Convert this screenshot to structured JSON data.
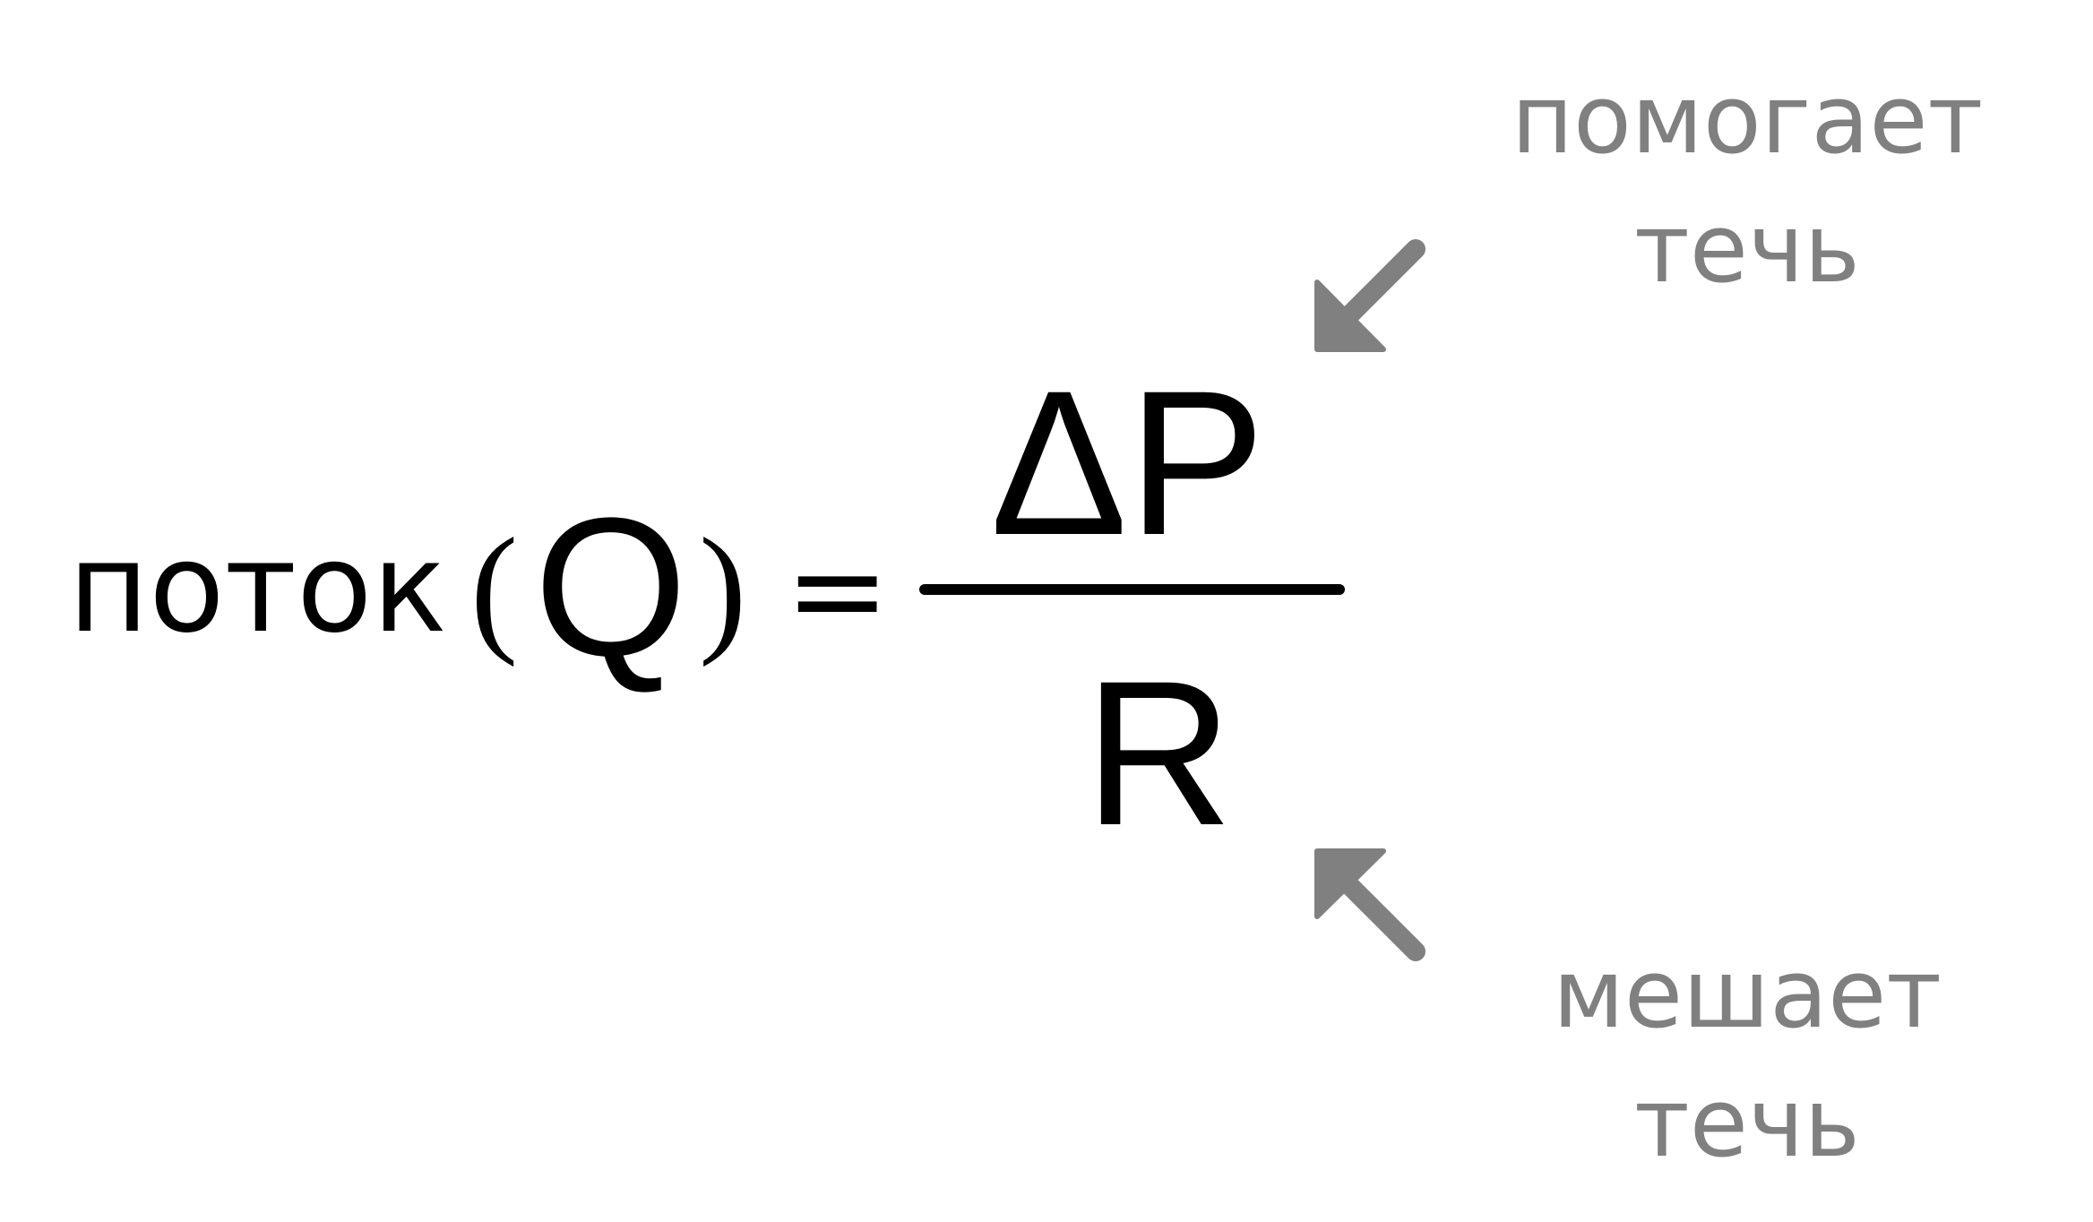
{
  "formula": {
    "lhs_label": "поток",
    "open_paren": "(",
    "symbol": "Q",
    "close_paren": ")",
    "equals": "=",
    "numerator": "ΔP",
    "denominator": "R"
  },
  "annotations": {
    "top": {
      "line1": "помогает",
      "line2": "течь",
      "color": "#808080",
      "icon": "arrow-down-left-icon"
    },
    "bottom": {
      "line1": "мешает",
      "line2": "течь",
      "color": "#808080",
      "icon": "arrow-up-left-icon"
    }
  },
  "colors": {
    "formula": "#000000",
    "annotation": "#808080",
    "background": "#ffffff"
  }
}
